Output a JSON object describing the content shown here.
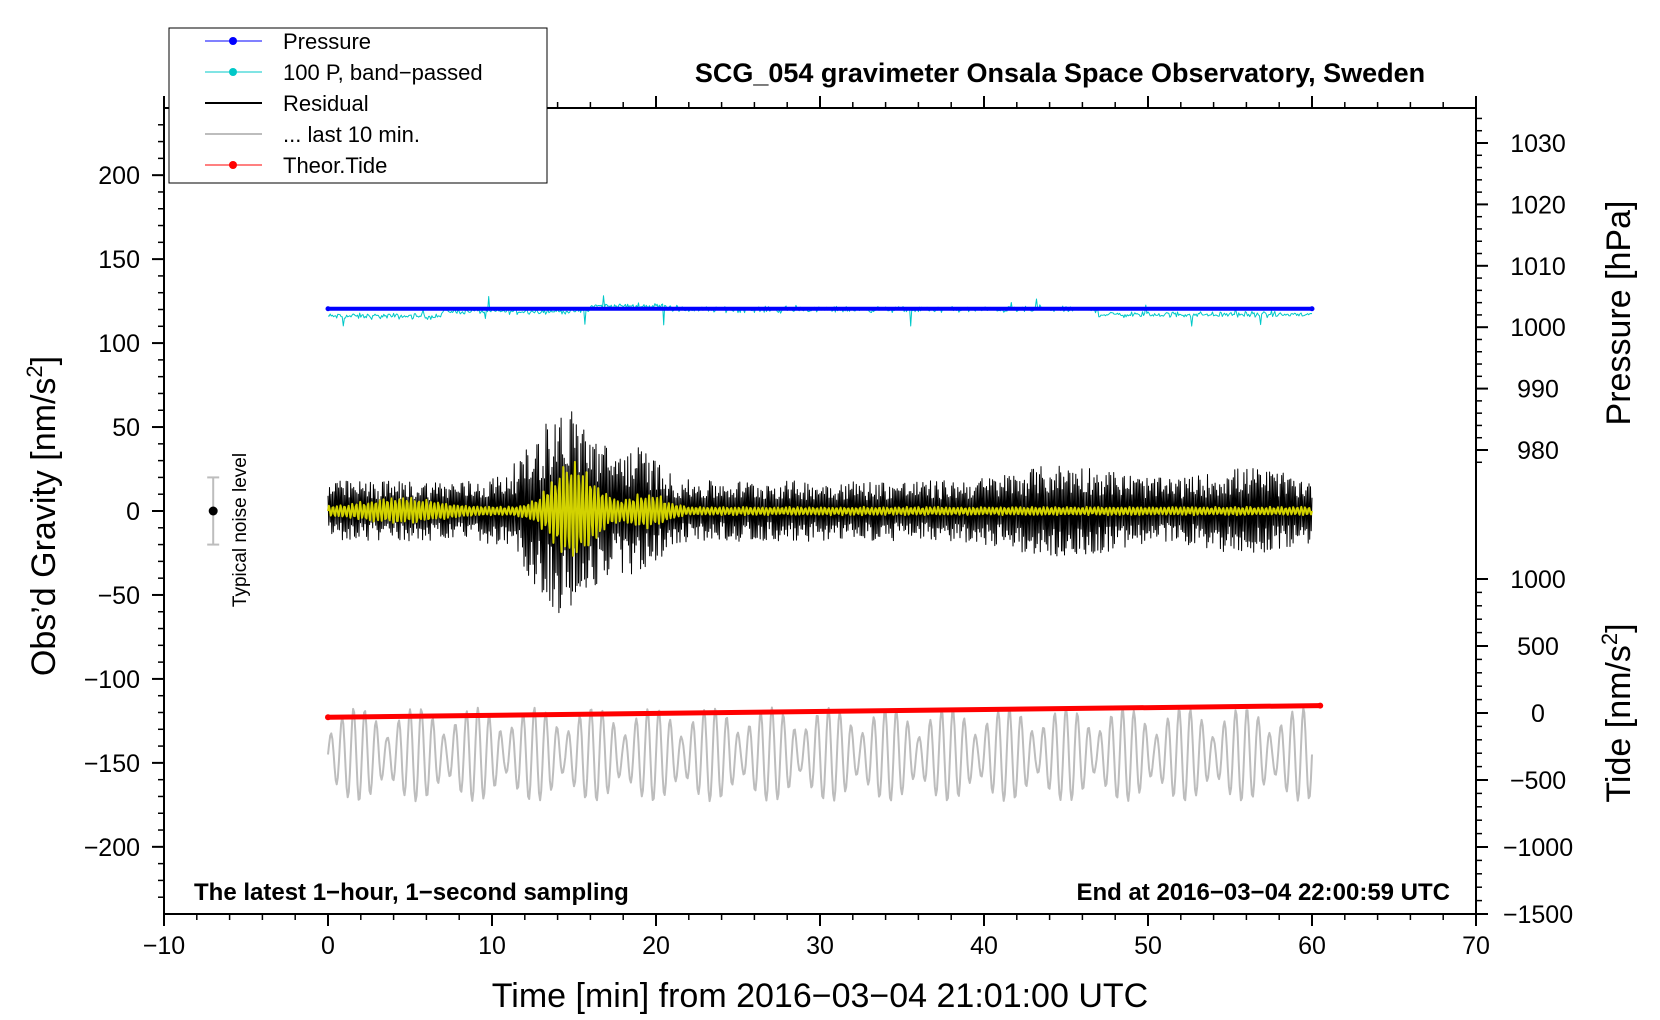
{
  "chart_data": {
    "type": "line",
    "title": "SCG_054 gravimeter Onsala Space Observatory, Sweden",
    "xlabel": "Time [min] from 2016−03−04 21:01:00 UTC",
    "ylabel_left": "Obs’d Gravity [nm/s",
    "ylabel_left_sup": "2",
    "ylabel_left_close": "]",
    "ylabel_right_pressure": "Pressure [hPa]",
    "ylabel_right_tide": "Tide [nm/s",
    "ylabel_right_tide_sup": "2",
    "ylabel_right_tide_close": "]",
    "xlim": [
      -10,
      70
    ],
    "ylim_left": [
      -240,
      240
    ],
    "pressure_range": [
      968,
      1038
    ],
    "tide_range": [
      -1500,
      1000
    ],
    "x_ticks": [
      {
        "v": -10,
        "label": "−10"
      },
      {
        "v": 0,
        "label": "0"
      },
      {
        "v": 10,
        "label": "10"
      },
      {
        "v": 20,
        "label": "20"
      },
      {
        "v": 30,
        "label": "30"
      },
      {
        "v": 40,
        "label": "40"
      },
      {
        "v": 50,
        "label": "50"
      },
      {
        "v": 60,
        "label": "60"
      },
      {
        "v": 70,
        "label": "70"
      }
    ],
    "y_ticks_left": [
      {
        "v": 200,
        "label": "200"
      },
      {
        "v": 150,
        "label": "150"
      },
      {
        "v": 100,
        "label": "100"
      },
      {
        "v": 50,
        "label": "50"
      },
      {
        "v": 0,
        "label": "0"
      },
      {
        "v": -50,
        "label": "−50"
      },
      {
        "v": -100,
        "label": "−100"
      },
      {
        "v": -150,
        "label": "−150"
      },
      {
        "v": -200,
        "label": "−200"
      }
    ],
    "y_ticks_pressure": [
      {
        "v": 1030,
        "label": "1030"
      },
      {
        "v": 1020,
        "label": "1020"
      },
      {
        "v": 1010,
        "label": "1010"
      },
      {
        "v": 1000,
        "label": "1000"
      },
      {
        "v": 990,
        "label": "990"
      },
      {
        "v": 980,
        "label": "980"
      }
    ],
    "y_ticks_tide": [
      {
        "v": 1000,
        "label": "1000"
      },
      {
        "v": 500,
        "label": "500"
      },
      {
        "v": 0,
        "label": "0"
      },
      {
        "v": -500,
        "label": "−500"
      },
      {
        "v": -1000,
        "label": "−1000"
      },
      {
        "v": -1500,
        "label": "−1500"
      }
    ],
    "legend": [
      {
        "label": "Pressure",
        "color": "#0000ff",
        "marker": true
      },
      {
        "label": "100 P, band−passed",
        "color": "#00c8c8",
        "marker": true
      },
      {
        "label": "Residual",
        "color": "#000000",
        "marker": false
      },
      {
        "label": "... last 10 min.",
        "color": "#bdbdbd",
        "marker": false
      },
      {
        "label": "Theor.Tide",
        "color": "#ff0000",
        "marker": true
      }
    ],
    "series": [
      {
        "name": "Pressure",
        "axis": "pressure",
        "color": "#0000ff",
        "x": [
          0,
          60
        ],
        "values": [
          1003,
          1003
        ]
      },
      {
        "name": "100 P, band−passed",
        "axis": "gravity",
        "color": "#00c8c8",
        "offset": 120,
        "x_range": [
          0,
          60
        ]
      },
      {
        "name": "Residual",
        "axis": "gravity",
        "color": "#000000",
        "x_range": [
          0,
          60
        ],
        "envelope_peak": 62
      },
      {
        "name": "Filtered residual",
        "axis": "gravity",
        "color": "#d2d200",
        "x_range": [
          0,
          60
        ],
        "envelope_peak": 30
      },
      {
        "name": "... last 10 min.",
        "axis": "gravity",
        "color": "#bdbdbd",
        "offset": -145,
        "x_range": [
          0,
          60
        ]
      },
      {
        "name": "Theor.Tide",
        "axis": "tide",
        "color": "#ff0000",
        "x": [
          0,
          60.5
        ],
        "values": [
          -32,
          55
        ]
      }
    ],
    "noise_bar": {
      "label": "Typical noise level",
      "x": -7,
      "y": 0,
      "low": -20,
      "high": 20
    },
    "annotation_left": "The latest 1−hour, 1−second sampling",
    "annotation_right": "End at 2016−03−04 22:00:59 UTC"
  }
}
